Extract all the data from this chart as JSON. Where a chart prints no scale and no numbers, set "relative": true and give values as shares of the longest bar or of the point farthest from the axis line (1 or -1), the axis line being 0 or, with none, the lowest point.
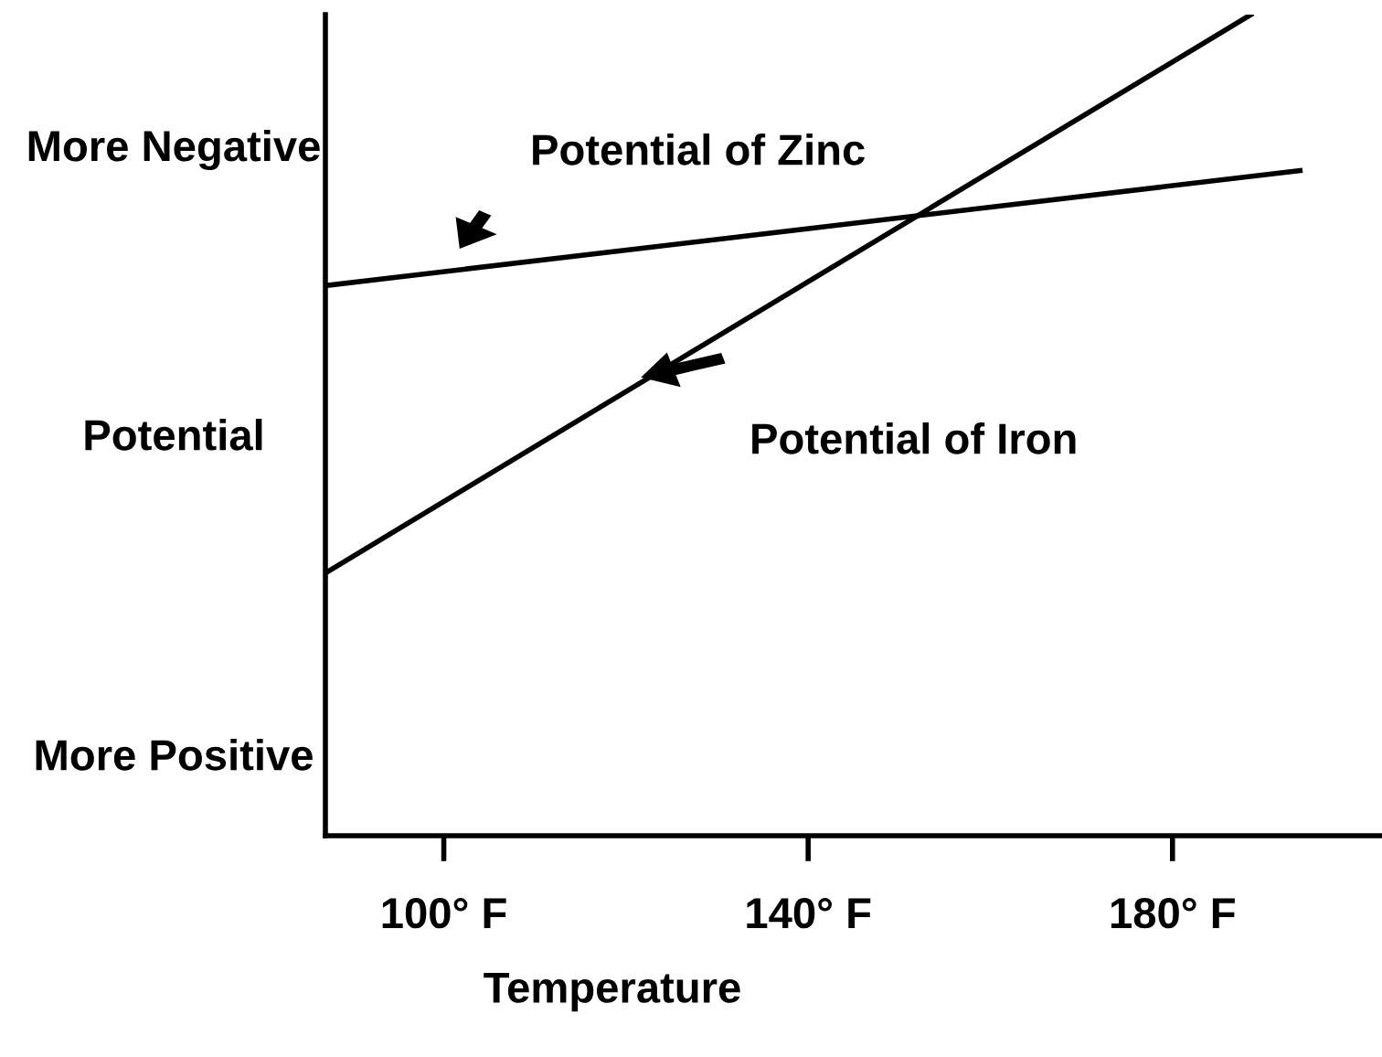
{
  "chart_data": {
    "type": "line",
    "relative": true,
    "xlabel": "Temperature",
    "ylabel": "Potential",
    "annotations": [
      "More Negative",
      "More Positive"
    ],
    "xlim": [
      87,
      203
    ],
    "xticks": [
      {
        "value": 100,
        "label": "100° F"
      },
      {
        "value": 140,
        "label": "140° F"
      },
      {
        "value": 180,
        "label": "180° F"
      }
    ],
    "series": [
      {
        "name": "Potential of Zinc",
        "color": "#000000",
        "x": [
          87,
          194
        ],
        "values": [
          0.67,
          0.81
        ]
      },
      {
        "name": "Potential of Iron",
        "color": "#000000",
        "x": [
          87,
          188.6
        ],
        "values": [
          0.32,
          1.0
        ]
      }
    ],
    "grid": false,
    "legend": false,
    "marker": "none",
    "line_style": "solid"
  }
}
